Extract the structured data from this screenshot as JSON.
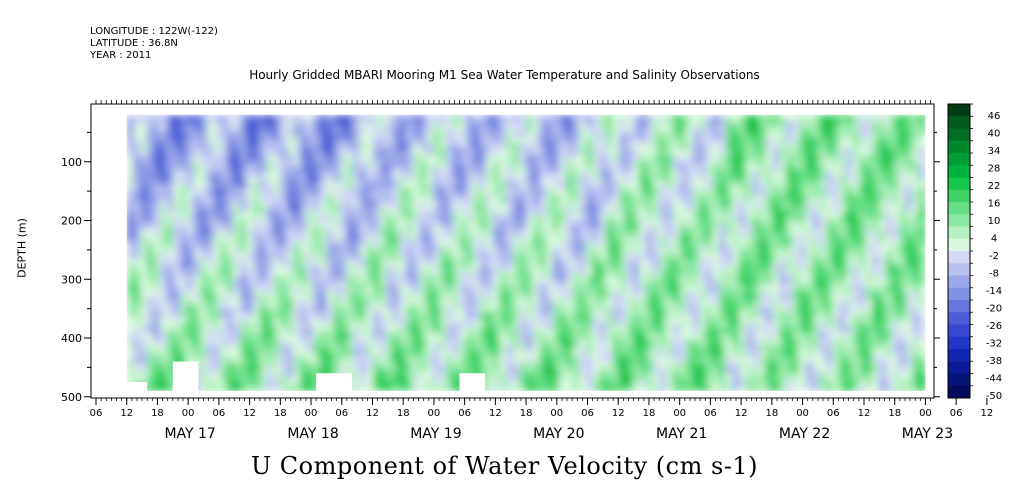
{
  "header": {
    "longitude": "LONGITUDE : 122W(-122)",
    "latitude": "LATITUDE : 36.8N",
    "year": "YEAR : 2011"
  },
  "chart_data": {
    "type": "heatmap",
    "title": "Hourly Gridded MBARI Mooring M1 Sea Water Temperature and Salinity Observations",
    "variable_title": "U Component of Water Velocity (cm s-1)",
    "ylabel": "DEPTH (m)",
    "xlabel": "",
    "y_range": [
      0,
      500
    ],
    "y_axis_inverted": true,
    "y_ticks": [
      100,
      200,
      300,
      400,
      500
    ],
    "x_tick_hours": [
      "06",
      "12",
      "18",
      "00",
      "06",
      "12",
      "18",
      "00",
      "06",
      "12",
      "18",
      "00",
      "06",
      "12",
      "18",
      "00",
      "06",
      "12",
      "18",
      "00",
      "06",
      "12",
      "18",
      "00",
      "06",
      "12",
      "18",
      "00",
      "06",
      "12",
      "18",
      "00"
    ],
    "x_day_labels": [
      "MAY 17",
      "MAY 18",
      "MAY 19",
      "MAY 20",
      "MAY 21",
      "MAY 22",
      "MAY 23"
    ],
    "colorbar": {
      "labels": [
        "46",
        "40",
        "34",
        "28",
        "22",
        "16",
        "10",
        "4",
        "-2",
        "-8",
        "-14",
        "-20",
        "-26",
        "-32",
        "-38",
        "-44",
        "-50"
      ],
      "min": -50,
      "max": 50,
      "step": 3,
      "colors_high_to_low": [
        "#003d14",
        "#005a1e",
        "#006e24",
        "#00862c",
        "#009e36",
        "#00b33d",
        "#17c74c",
        "#3ed364",
        "#66de84",
        "#8ce9a4",
        "#b4f0c2",
        "#d9f7df",
        "#d3d9f5",
        "#b8c0f0",
        "#9ca8ea",
        "#8290e4",
        "#6676dc",
        "#4c5ed6",
        "#3448d0",
        "#2036ca",
        "#1226b4",
        "#0a1a96",
        "#061278",
        "#030a5a"
      ]
    },
    "data_summary": {
      "data_start": "2011-05-17 12:00",
      "data_end": "2011-05-24 00:00",
      "depth_min_m": 20,
      "depth_max_m": 490,
      "upper_water_early_period": "negative (-20 to -10)",
      "deep_water": "positive (+5 to +15)",
      "late_period_upper": "positive (+10 to +25)"
    },
    "grid": false,
    "legend_placement": "right"
  }
}
